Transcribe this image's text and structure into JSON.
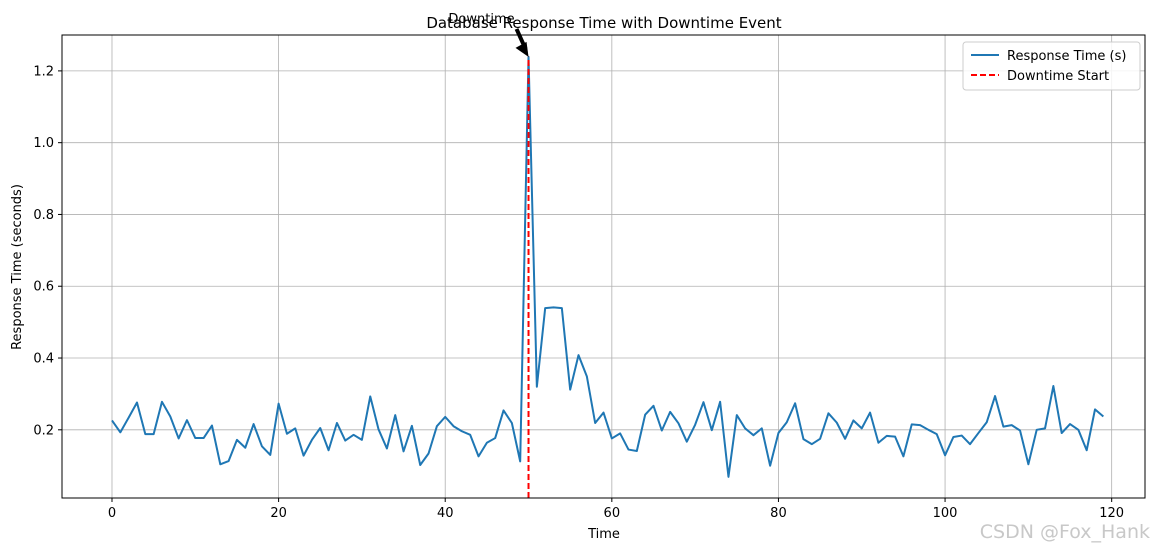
{
  "chart_data": {
    "type": "line",
    "title": "Database Response Time with Downtime Event",
    "xlabel": "Time",
    "ylabel": "Response Time (seconds)",
    "xlim": [
      -6,
      124
    ],
    "ylim": [
      0.01,
      1.3
    ],
    "x_ticks": [
      0,
      20,
      40,
      60,
      80,
      100,
      120
    ],
    "y_ticks": [
      0.2,
      0.4,
      0.6,
      0.8,
      1.0,
      1.2
    ],
    "x_tick_labels": [
      "0",
      "20",
      "40",
      "60",
      "80",
      "100",
      "120"
    ],
    "y_tick_labels": [
      "0.2",
      "0.4",
      "0.6",
      "0.8",
      "1.0",
      "1.2"
    ],
    "grid": true,
    "legend_position": "top-right",
    "series": [
      {
        "name": "Response Time (s)",
        "color": "#1f77b4",
        "x": [
          0,
          1,
          2,
          3,
          4,
          5,
          6,
          7,
          8,
          9,
          10,
          11,
          12,
          13,
          14,
          15,
          16,
          17,
          18,
          19,
          20,
          21,
          22,
          23,
          24,
          25,
          26,
          27,
          28,
          29,
          30,
          31,
          32,
          33,
          34,
          35,
          36,
          37,
          38,
          39,
          40,
          41,
          42,
          43,
          44,
          45,
          46,
          47,
          48,
          49,
          50,
          51,
          52,
          53,
          54,
          55,
          56,
          57,
          58,
          59,
          60,
          61,
          62,
          63,
          64,
          65,
          66,
          67,
          68,
          69,
          70,
          71,
          72,
          73,
          74,
          75,
          76,
          77,
          78,
          79,
          80,
          81,
          82,
          83,
          84,
          85,
          86,
          87,
          88,
          89,
          90,
          91,
          92,
          93,
          94,
          95,
          96,
          97,
          98,
          99,
          100,
          101,
          102,
          103,
          104,
          105,
          106,
          107,
          108,
          109,
          110,
          111,
          112,
          113,
          114,
          115,
          116,
          117,
          118,
          119
        ],
        "values": [
          0.226,
          0.193,
          0.234,
          0.276,
          0.188,
          0.188,
          0.278,
          0.237,
          0.176,
          0.227,
          0.177,
          0.177,
          0.212,
          0.104,
          0.113,
          0.172,
          0.15,
          0.216,
          0.154,
          0.13,
          0.273,
          0.189,
          0.204,
          0.128,
          0.172,
          0.205,
          0.143,
          0.219,
          0.17,
          0.186,
          0.172,
          0.293,
          0.201,
          0.148,
          0.241,
          0.14,
          0.211,
          0.102,
          0.134,
          0.21,
          0.236,
          0.21,
          0.196,
          0.186,
          0.126,
          0.164,
          0.177,
          0.254,
          0.219,
          0.112,
          1.239,
          0.32,
          0.539,
          0.541,
          0.539,
          0.312,
          0.408,
          0.349,
          0.219,
          0.248,
          0.176,
          0.19,
          0.145,
          0.141,
          0.242,
          0.267,
          0.198,
          0.25,
          0.218,
          0.167,
          0.214,
          0.277,
          0.199,
          0.278,
          0.069,
          0.241,
          0.204,
          0.185,
          0.204,
          0.1,
          0.191,
          0.221,
          0.274,
          0.174,
          0.16,
          0.175,
          0.246,
          0.22,
          0.175,
          0.226,
          0.204,
          0.248,
          0.164,
          0.183,
          0.181,
          0.126,
          0.215,
          0.213,
          0.2,
          0.188,
          0.129,
          0.18,
          0.184,
          0.16,
          0.191,
          0.221,
          0.294,
          0.209,
          0.213,
          0.198,
          0.104,
          0.2,
          0.204,
          0.322,
          0.191,
          0.216,
          0.2,
          0.143,
          0.257,
          0.237
        ]
      },
      {
        "name": "Downtime Start",
        "color": "#ff0000",
        "style": "dashed",
        "x": [
          50,
          50
        ],
        "values": [
          0.01,
          1.239
        ]
      }
    ],
    "annotations": [
      {
        "text": "Downtime",
        "x": 50,
        "y": 1.239,
        "arrow": true
      }
    ]
  },
  "watermark": "CSDN @Fox_Hank"
}
